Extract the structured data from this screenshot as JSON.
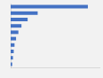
{
  "chart_data": {
    "type": "bar",
    "orientation": "horizontal",
    "categories": [
      null,
      null,
      null,
      null,
      null,
      null,
      null,
      null,
      null,
      null
    ],
    "values": [
      100,
      35,
      22,
      14,
      10,
      7,
      5,
      4,
      3,
      2
    ],
    "color": "#4472c4",
    "xlim": [
      0,
      115
    ],
    "xticks": [],
    "grid": false,
    "tick_labels": false
  }
}
